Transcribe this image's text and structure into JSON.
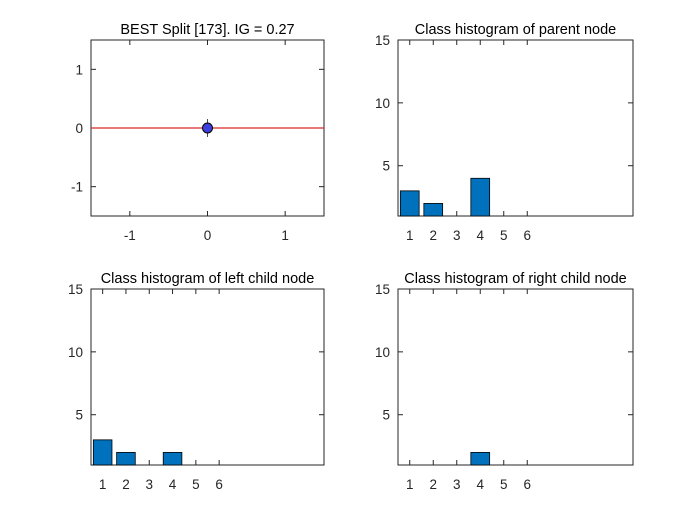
{
  "figure": {
    "background": "#ffffff"
  },
  "chart_data": [
    {
      "type": "scatter",
      "title": "BEST Split [173]. IG = 0.27",
      "xlabel": "",
      "ylabel": "",
      "xlim": [
        -1.5,
        1.5
      ],
      "ylim": [
        -1.5,
        1.5
      ],
      "xticks": [
        -1,
        0,
        1
      ],
      "yticks": [
        -1,
        0,
        1
      ],
      "xtick_labels": [
        "-1",
        "0",
        "1"
      ],
      "ytick_labels": [
        "-1",
        "0",
        "1"
      ],
      "grid": false,
      "split_line": {
        "y": 0,
        "x_range": [
          -1.5,
          1.5
        ],
        "color": "#d62728"
      },
      "points": [
        {
          "x": 0,
          "y": 0,
          "color": "#3f3fdf",
          "edge": "#000000"
        }
      ]
    },
    {
      "type": "bar",
      "title": "Class histogram of parent node",
      "xlabel": "",
      "ylabel": "",
      "categories": [
        "1",
        "2",
        "3",
        "4",
        "5",
        "6"
      ],
      "values": [
        3,
        2,
        0,
        4,
        0,
        0
      ],
      "xlim": [
        0.5,
        10.5
      ],
      "ylim": [
        1,
        15
      ],
      "yticks": [
        5,
        10,
        15
      ],
      "ytick_labels": [
        "5",
        "10",
        "15"
      ],
      "bar_color": "#0072BD",
      "grid": false
    },
    {
      "type": "bar",
      "title": "Class histogram of left child node",
      "xlabel": "",
      "ylabel": "",
      "categories": [
        "1",
        "2",
        "3",
        "4",
        "5",
        "6"
      ],
      "values": [
        3,
        2,
        0,
        2,
        0,
        0
      ],
      "xlim": [
        0.5,
        10.5
      ],
      "ylim": [
        1,
        15
      ],
      "yticks": [
        5,
        10,
        15
      ],
      "ytick_labels": [
        "5",
        "10",
        "15"
      ],
      "bar_color": "#0072BD",
      "grid": false
    },
    {
      "type": "bar",
      "title": "Class histogram of right child node",
      "xlabel": "",
      "ylabel": "",
      "categories": [
        "1",
        "2",
        "3",
        "4",
        "5",
        "6"
      ],
      "values": [
        0,
        0,
        0,
        2,
        0,
        0
      ],
      "xlim": [
        0.5,
        10.5
      ],
      "ylim": [
        1,
        15
      ],
      "yticks": [
        5,
        10,
        15
      ],
      "ytick_labels": [
        "5",
        "10",
        "15"
      ],
      "bar_color": "#0072BD",
      "grid": false
    }
  ]
}
